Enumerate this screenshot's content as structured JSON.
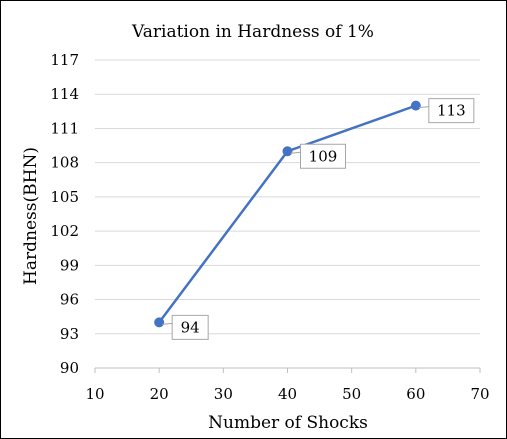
{
  "chart_data": {
    "type": "line",
    "title": "Variation in Hardness of 1%",
    "xlabel": "Number of Shocks",
    "ylabel": "Hardness(BHN)",
    "xlim": [
      10,
      70
    ],
    "ylim": [
      90,
      117
    ],
    "x_ticks": [
      10,
      20,
      30,
      40,
      50,
      60,
      70
    ],
    "y_ticks": [
      90,
      93,
      96,
      99,
      102,
      105,
      108,
      111,
      114,
      117
    ],
    "grid": "horizontal",
    "legend": "none",
    "series": [
      {
        "x": [
          20,
          40,
          60
        ],
        "y": [
          94,
          109,
          113
        ],
        "data_labels": [
          "94",
          "109",
          "113"
        ],
        "color": "#4472C4"
      }
    ]
  },
  "colors": {
    "series": "#4472C4",
    "grid": "#D9D9D9",
    "axis": "#BFBFBF",
    "label_border": "#A6A6A6"
  }
}
